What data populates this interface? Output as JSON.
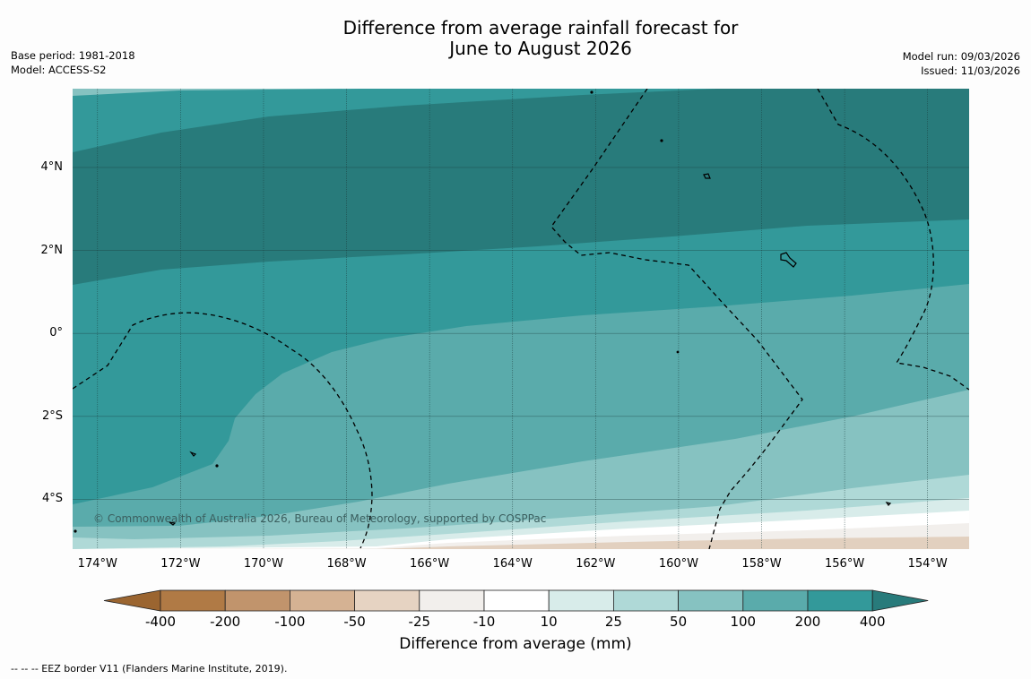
{
  "title": {
    "line1": "Difference from average rainfall forecast for",
    "line2": "June to August 2026"
  },
  "meta": {
    "base_period": "Base period: 1981-2018",
    "model": "Model: ACCESS-S2",
    "model_run": "Model run: 09/03/2026",
    "issued": "Issued: 11/03/2026"
  },
  "map": {
    "lon_labels": [
      "174°W",
      "172°W",
      "170°W",
      "168°W",
      "166°W",
      "164°W",
      "162°W",
      "160°W",
      "158°W",
      "156°W",
      "154°W"
    ],
    "lat_labels": [
      "4°N",
      "2°N",
      "0°",
      "2°S",
      "4°S"
    ],
    "lat_values": [
      4,
      2,
      0,
      -2,
      -4
    ],
    "lon_values": [
      -174,
      -172,
      -170,
      -168,
      -166,
      -164,
      -162,
      -160,
      -158,
      -156,
      -154
    ],
    "lon_range": [
      -174.6,
      -153.0
    ],
    "lat_range": [
      -5.2,
      5.9
    ],
    "copyright": "© Commonwealth of Australia 2026, Bureau of Meteorology, supported by COSPPac"
  },
  "colorbar": {
    "title": "Difference from average (mm)",
    "labels": [
      "-400",
      "-200",
      "-100",
      "-50",
      "-25",
      "-10",
      "10",
      "25",
      "50",
      "100",
      "200",
      "400"
    ],
    "colors": [
      "#9b6530",
      "#b07a45",
      "#c1946c",
      "#d5b293",
      "#e6d3c2",
      "#f2efec",
      "#ffffff",
      "#d8ecea",
      "#afd9d7",
      "#86c2c1",
      "#5aabab",
      "#33999a",
      "#287b7b"
    ]
  },
  "footer": "--  --  -- EEZ border V11 (Flanders Marine Institute, 2019)."
}
